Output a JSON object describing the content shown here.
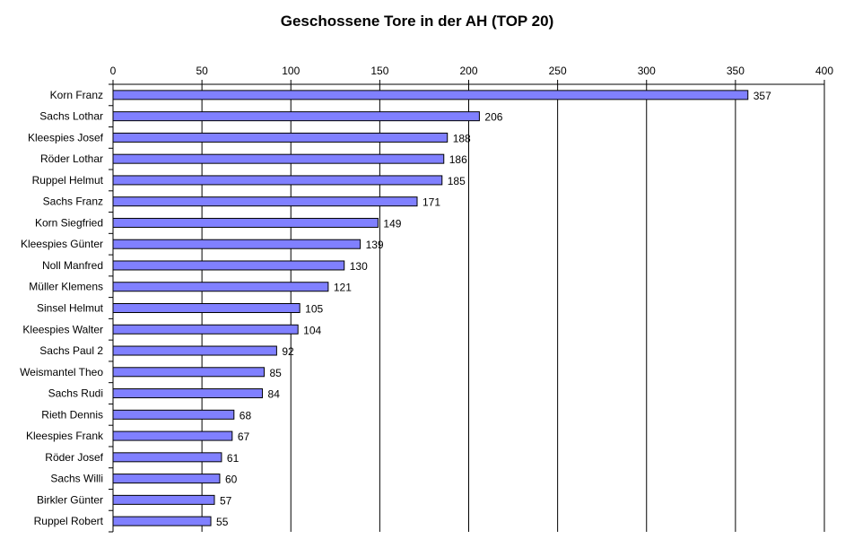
{
  "chart_data": {
    "type": "bar",
    "orientation": "horizontal",
    "title": "Geschossene Tore in der AH (TOP 20)",
    "xlabel": "",
    "ylabel": "",
    "xlim": [
      0,
      400
    ],
    "x_ticks": [
      0,
      50,
      100,
      150,
      200,
      250,
      300,
      350,
      400
    ],
    "x_axis_position": "top",
    "grid": "vertical",
    "legend": "none",
    "categories": [
      "Korn Franz",
      "Sachs Lothar",
      "Kleespies Josef",
      "Röder Lothar",
      "Ruppel Helmut",
      "Sachs Franz",
      "Korn Siegfried",
      "Kleespies Günter",
      "Noll Manfred",
      "Müller Klemens",
      "Sinsel Helmut",
      "Kleespies Walter",
      "Sachs Paul 2",
      "Weismantel Theo",
      "Sachs Rudi",
      "Rieth Dennis",
      "Kleespies Frank",
      "Röder Josef",
      "Sachs Willi",
      "Birkler Günter",
      "Ruppel Robert"
    ],
    "values": [
      357,
      206,
      188,
      186,
      185,
      171,
      149,
      139,
      130,
      121,
      105,
      104,
      92,
      85,
      84,
      68,
      67,
      61,
      60,
      57,
      55
    ],
    "bar_color": "#8080ff",
    "bar_edge_color": "#000000"
  }
}
